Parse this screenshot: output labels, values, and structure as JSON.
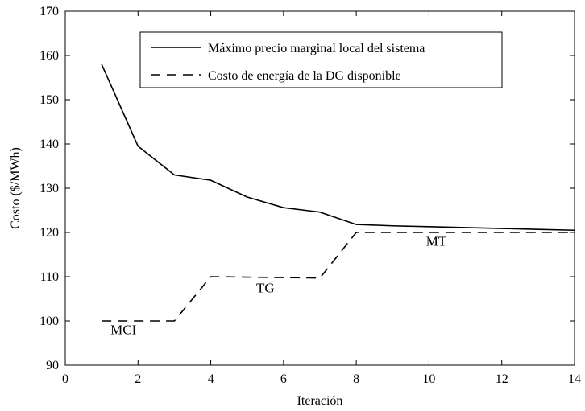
{
  "chart_data": {
    "type": "line",
    "xlabel": "Iteración",
    "ylabel": "Costo ($/MWh)",
    "xlim": [
      0,
      14
    ],
    "ylim": [
      90,
      170
    ],
    "xticks": [
      0,
      2,
      4,
      6,
      8,
      10,
      12,
      14
    ],
    "yticks": [
      90,
      100,
      110,
      120,
      130,
      140,
      150,
      160,
      170
    ],
    "grid": false,
    "legend_position": "top-right",
    "series": [
      {
        "name": "Máximo precio marginal local del sistema",
        "style": "solid",
        "color": "#000000",
        "x": [
          1,
          2,
          3,
          4,
          5,
          6,
          7,
          8,
          9,
          10,
          11,
          12,
          13,
          14
        ],
        "y": [
          158,
          139.5,
          133,
          131.8,
          128,
          125.6,
          124.6,
          121.8,
          121.5,
          121.3,
          121.1,
          120.9,
          120.7,
          120.5
        ]
      },
      {
        "name": "Costo de energía de la DG disponible",
        "style": "dashed",
        "color": "#000000",
        "x": [
          1,
          2,
          3,
          4,
          5,
          6,
          7,
          8,
          9,
          10,
          11,
          12,
          13,
          14
        ],
        "y": [
          100,
          100,
          100,
          110,
          109.9,
          109.8,
          109.7,
          120,
          120,
          120,
          120,
          120,
          120,
          120
        ]
      }
    ],
    "annotations": [
      {
        "text": "MCI",
        "x": 1.6,
        "y": 97
      },
      {
        "text": "TG",
        "x": 5.5,
        "y": 106.5
      },
      {
        "text": "MT",
        "x": 10.2,
        "y": 117
      }
    ]
  }
}
